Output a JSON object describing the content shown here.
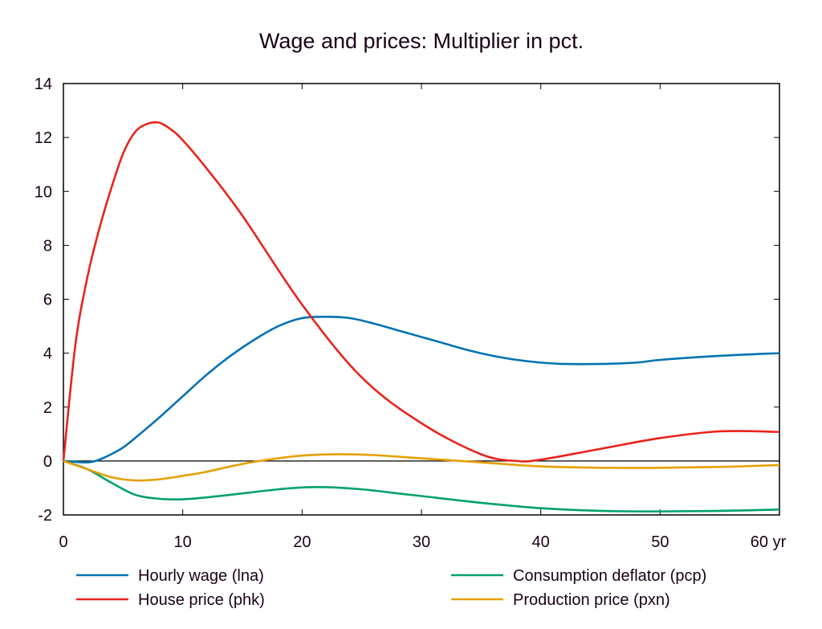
{
  "chart_data": {
    "type": "line",
    "title": "Wage and prices: Multiplier in pct.",
    "xlabel": "yr",
    "ylabel": "",
    "xlim": [
      0,
      60
    ],
    "ylim": [
      -2,
      14
    ],
    "xticks": [
      0,
      10,
      20,
      30,
      40,
      50,
      60
    ],
    "xtick_labels": [
      "0",
      "10",
      "20",
      "30",
      "40",
      "50",
      "60 yr"
    ],
    "yticks": [
      -2,
      0,
      2,
      4,
      6,
      8,
      10,
      12,
      14
    ],
    "ytick_labels": [
      "-2",
      "0",
      "2",
      "4",
      "6",
      "8",
      "10",
      "12",
      "14"
    ],
    "grid": false,
    "legend_position": "bottom",
    "series": [
      {
        "name": "Hourly wage (lna)",
        "color": "#0072b2",
        "x": [
          0,
          2,
          3,
          4,
          5,
          6,
          8,
          10,
          12,
          14,
          16,
          18,
          20,
          22,
          24,
          26,
          28,
          30,
          32,
          34,
          36,
          38,
          40,
          42,
          45,
          48,
          50,
          55,
          60
        ],
        "y": [
          0,
          -0.05,
          0.05,
          0.25,
          0.5,
          0.85,
          1.6,
          2.4,
          3.2,
          3.9,
          4.5,
          5.0,
          5.3,
          5.35,
          5.3,
          5.1,
          4.85,
          4.6,
          4.35,
          4.1,
          3.9,
          3.75,
          3.65,
          3.6,
          3.6,
          3.65,
          3.75,
          3.9,
          4.0
        ]
      },
      {
        "name": "House price (phk)",
        "color": "#e8231c",
        "x": [
          0,
          1,
          2,
          3,
          4,
          5,
          6,
          7,
          8,
          9,
          10,
          12,
          15,
          20,
          25,
          30,
          35,
          38,
          40,
          45,
          50,
          55,
          60
        ],
        "y": [
          0,
          4.3,
          6.8,
          8.6,
          10.1,
          11.4,
          12.2,
          12.5,
          12.55,
          12.3,
          11.9,
          10.85,
          9.1,
          5.8,
          3.1,
          1.4,
          0.25,
          0,
          0.05,
          0.45,
          0.85,
          1.1,
          1.08
        ]
      },
      {
        "name": "Consumption deflator (pcp)",
        "color": "#00a070",
        "x": [
          0,
          2,
          4,
          6,
          8,
          10,
          12,
          15,
          18,
          20,
          22,
          25,
          28,
          30,
          35,
          40,
          45,
          50,
          55,
          60
        ],
        "y": [
          0,
          -0.3,
          -0.8,
          -1.25,
          -1.4,
          -1.42,
          -1.35,
          -1.2,
          -1.05,
          -0.98,
          -0.97,
          -1.05,
          -1.2,
          -1.3,
          -1.55,
          -1.75,
          -1.85,
          -1.87,
          -1.85,
          -1.8
        ]
      },
      {
        "name": "Production price (pxn)",
        "color": "#e69f00",
        "x": [
          0,
          2,
          4,
          6,
          8,
          10,
          12,
          14,
          16,
          18,
          20,
          23,
          26,
          30,
          35,
          40,
          45,
          50,
          55,
          60
        ],
        "y": [
          0,
          -0.3,
          -0.6,
          -0.72,
          -0.68,
          -0.55,
          -0.4,
          -0.2,
          -0.03,
          0.1,
          0.2,
          0.25,
          0.22,
          0.1,
          -0.05,
          -0.2,
          -0.25,
          -0.25,
          -0.22,
          -0.15
        ]
      }
    ]
  }
}
